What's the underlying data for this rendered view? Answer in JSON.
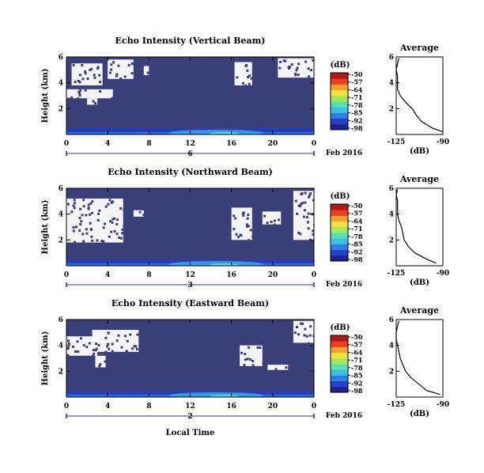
{
  "colors": {
    "background": "#3a3f7a",
    "gap": "#ffffff",
    "colorbar": [
      "#20208a",
      "#2540c8",
      "#2f7fe0",
      "#3ac0e8",
      "#5ae0b0",
      "#a0e860",
      "#f0e040",
      "#f0a030",
      "#e84020",
      "#b01818"
    ]
  },
  "chart_data": [
    {
      "type": "heatmap",
      "title": "Echo Intensity (Vertical Beam)",
      "ylabel": "Height (km)",
      "yticks": [
        "6",
        "4",
        "2"
      ],
      "ylim": [
        0,
        6
      ],
      "xticks": [
        "0",
        "4",
        "8",
        "12",
        "16",
        "20",
        "0"
      ],
      "xlim": [
        0,
        24
      ],
      "day_label": "6",
      "month_label": "Feb 2016",
      "colorbar_unit": "(dB)",
      "colorbar_ticks": [
        "-50",
        "-57",
        "-64",
        "-71",
        "-78",
        "-85",
        "-92",
        "-98"
      ],
      "gaps": [
        {
          "t": [
            0.5,
            3.5
          ],
          "h": [
            3.8,
            5.5
          ]
        },
        {
          "t": [
            4.0,
            6.5
          ],
          "h": [
            4.3,
            5.8
          ]
        },
        {
          "t": [
            7.5,
            8.0
          ],
          "h": [
            4.6,
            5.3
          ]
        },
        {
          "t": [
            16.3,
            18.0
          ],
          "h": [
            3.8,
            5.6
          ]
        },
        {
          "t": [
            20.5,
            24.0
          ],
          "h": [
            4.4,
            5.9
          ]
        },
        {
          "t": [
            0.0,
            4.5
          ],
          "h": [
            2.8,
            3.5
          ]
        },
        {
          "t": [
            2.0,
            3.0
          ],
          "h": [
            2.3,
            2.8
          ]
        }
      ],
      "average": {
        "title": "Average",
        "xlabel": "(dB)",
        "xticks": [
          "-125",
          "-90"
        ],
        "xlim": [
          -125,
          -90
        ],
        "yticks": [
          "6",
          "4",
          "2"
        ],
        "ylim": [
          0,
          6
        ],
        "height": [
          0.2,
          0.5,
          1.0,
          1.5,
          2.0,
          2.5,
          3.0,
          3.5,
          4.0,
          4.5,
          5.0,
          5.5,
          5.9
        ],
        "value": [
          -90,
          -98,
          -106,
          -110,
          -113,
          -118,
          -122,
          -124,
          -124,
          -124,
          -125,
          -124,
          -123
        ]
      }
    },
    {
      "type": "heatmap",
      "title": "Echo Intensity (Northward Beam)",
      "ylabel": "Height (km)",
      "yticks": [
        "6",
        "4",
        "2"
      ],
      "ylim": [
        0,
        6
      ],
      "xticks": [
        "0",
        "4",
        "8",
        "12",
        "16",
        "20",
        "0"
      ],
      "xlim": [
        0,
        24
      ],
      "day_label": "3",
      "month_label": "Feb 2016",
      "colorbar_unit": "(dB)",
      "colorbar_ticks": [
        "-50",
        "-57",
        "-64",
        "-71",
        "-78",
        "-85",
        "-92",
        "-98"
      ],
      "gaps": [
        {
          "t": [
            0.0,
            5.5
          ],
          "h": [
            1.8,
            5.2
          ]
        },
        {
          "t": [
            16.0,
            18.0
          ],
          "h": [
            2.0,
            4.5
          ]
        },
        {
          "t": [
            19.0,
            20.8
          ],
          "h": [
            3.2,
            4.2
          ]
        },
        {
          "t": [
            22.0,
            24.0
          ],
          "h": [
            2.0,
            5.8
          ]
        },
        {
          "t": [
            6.5,
            7.5
          ],
          "h": [
            3.8,
            4.3
          ]
        }
      ],
      "average": {
        "title": "Average",
        "xlabel": "(dB)",
        "xticks": [
          "-125",
          "-90"
        ],
        "xlim": [
          -125,
          -90
        ],
        "yticks": [
          "6",
          "4",
          "2"
        ],
        "ylim": [
          0,
          6
        ],
        "height": [
          0.2,
          0.5,
          1.0,
          1.5,
          2.0,
          2.5,
          3.0,
          3.5,
          4.0,
          4.5,
          5.0,
          5.5,
          5.9
        ],
        "value": [
          -95,
          -102,
          -111,
          -116,
          -119,
          -120,
          -121,
          -123,
          -124,
          -124,
          -124,
          -125,
          -124
        ]
      }
    },
    {
      "type": "heatmap",
      "title": "Echo Intensity (Eastward Beam)",
      "ylabel": "Height (km)",
      "yticks": [
        "6",
        "4",
        "2"
      ],
      "ylim": [
        0,
        6
      ],
      "xticks": [
        "0",
        "4",
        "8",
        "12",
        "16",
        "20",
        "0"
      ],
      "xlim": [
        0,
        24
      ],
      "day_label": "2",
      "month_label": "Feb 2016",
      "xlabel": "Local Time",
      "colorbar_unit": "(dB)",
      "colorbar_ticks": [
        "-50",
        "-57",
        "-64",
        "-71",
        "-78",
        "-85",
        "-92",
        "-98"
      ],
      "gaps": [
        {
          "t": [
            0.0,
            3.0
          ],
          "h": [
            3.2,
            4.7
          ]
        },
        {
          "t": [
            2.5,
            7.0
          ],
          "h": [
            3.5,
            5.2
          ]
        },
        {
          "t": [
            2.8,
            3.8
          ],
          "h": [
            2.3,
            3.2
          ]
        },
        {
          "t": [
            16.8,
            19.0
          ],
          "h": [
            2.4,
            4.0
          ]
        },
        {
          "t": [
            22.0,
            24.0
          ],
          "h": [
            4.2,
            5.9
          ]
        },
        {
          "t": [
            19.5,
            21.5
          ],
          "h": [
            2.1,
            2.5
          ]
        }
      ],
      "average": {
        "title": "Average",
        "xlabel": "(dB)",
        "xticks": [
          "-125",
          "-90"
        ],
        "xlim": [
          -125,
          -90
        ],
        "yticks": [
          "6",
          "4",
          "2"
        ],
        "ylim": [
          0,
          6
        ],
        "height": [
          0.2,
          0.5,
          1.0,
          1.5,
          2.0,
          2.5,
          3.0,
          3.5,
          4.0,
          4.5,
          5.0,
          5.5,
          5.9
        ],
        "value": [
          -92,
          -102,
          -108,
          -114,
          -118,
          -120,
          -122,
          -123,
          -124,
          -125,
          -125,
          -124,
          -123
        ]
      }
    }
  ]
}
